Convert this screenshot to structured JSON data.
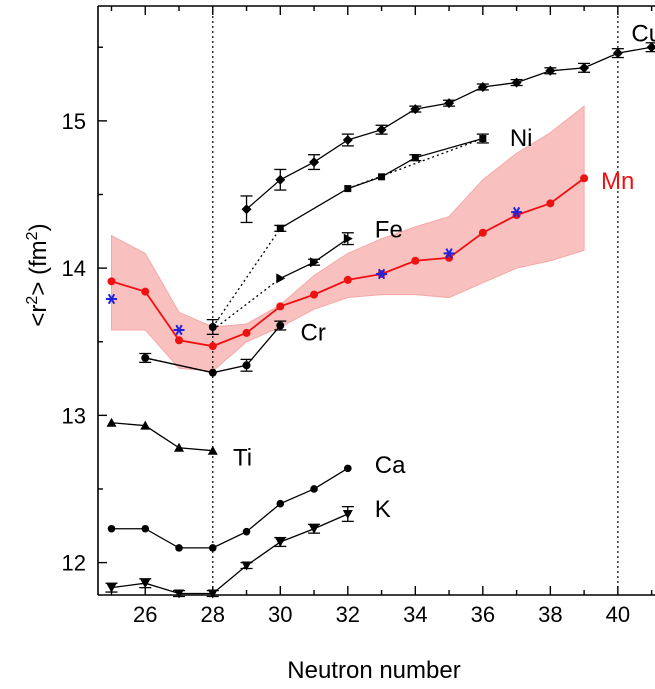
{
  "chart_data": {
    "type": "line",
    "xlabel": "Neutron number",
    "ylabel": "<r",
    "ylabel_sup": "2",
    "ylabel_tail": "> (fm",
    "ylabel_tail_sup": "2",
    "ylabel_close": ")",
    "xlim": [
      24.6,
      41.1
    ],
    "ylim": [
      11.78,
      15.78
    ],
    "xticks": [
      26,
      28,
      30,
      32,
      34,
      36,
      38,
      40
    ],
    "yticks": [
      12,
      13,
      14,
      15
    ],
    "vlines": [
      28,
      40
    ],
    "grid": false,
    "band": {
      "name": "Mn",
      "color": "#f8b6b6",
      "x": [
        25,
        26,
        27,
        28,
        29,
        30,
        31,
        32,
        33,
        34,
        35,
        36,
        37,
        38,
        39
      ],
      "upper": [
        14.22,
        14.1,
        13.7,
        13.6,
        13.62,
        13.75,
        13.95,
        14.1,
        14.2,
        14.28,
        14.35,
        14.6,
        14.78,
        14.92,
        15.1
      ],
      "lower": [
        13.58,
        13.58,
        13.32,
        13.3,
        13.5,
        13.6,
        13.72,
        13.8,
        13.82,
        13.82,
        13.8,
        13.9,
        14.0,
        14.05,
        14.12
      ]
    },
    "series": [
      {
        "name": "Cu",
        "color": "#000000",
        "marker": "diamond",
        "dashed": false,
        "x": [
          29,
          30,
          31,
          32,
          33,
          34,
          35,
          36,
          37,
          38,
          39,
          40,
          41
        ],
        "y": [
          14.4,
          14.6,
          14.72,
          14.87,
          14.94,
          15.08,
          15.12,
          15.23,
          15.26,
          15.34,
          15.36,
          15.46,
          15.5
        ],
        "err": [
          0.09,
          0.07,
          0.05,
          0.04,
          0.03,
          0.02,
          0.02,
          0.02,
          0.02,
          0.02,
          0.03,
          0.03,
          0.03
        ]
      },
      {
        "name": "Ni",
        "color": "#000000",
        "marker": "square",
        "dashed": false,
        "x": [
          30,
          32,
          33,
          34,
          36
        ],
        "y": [
          14.27,
          14.54,
          14.62,
          14.75,
          14.88
        ],
        "err": [
          0.02,
          0.0,
          0.0,
          0.02,
          0.03
        ]
      },
      {
        "name": "Fe",
        "color": "#000000",
        "marker": "triangle-right",
        "dashed": false,
        "x": [
          30,
          31,
          32
        ],
        "y": [
          13.93,
          14.04,
          14.2
        ],
        "err": [
          0.0,
          0.02,
          0.04
        ]
      },
      {
        "name": "Cr",
        "color": "#000000",
        "marker": "circle",
        "dashed": false,
        "x": [
          26,
          28,
          29,
          30
        ],
        "y": [
          13.39,
          13.29,
          13.34,
          13.61
        ],
        "err": [
          0.03,
          0.0,
          0.04,
          0.03
        ]
      },
      {
        "name": "Ti",
        "color": "#000000",
        "marker": "triangle-up",
        "dashed": false,
        "x": [
          25,
          26,
          27,
          28
        ],
        "y": [
          12.95,
          12.93,
          12.78,
          12.76
        ],
        "err": [
          0.0,
          0.0,
          0.0,
          0.0
        ]
      },
      {
        "name": "Ca",
        "color": "#000000",
        "marker": "hexagon",
        "dashed": false,
        "x": [
          25,
          26,
          27,
          28,
          29,
          30,
          31,
          32
        ],
        "y": [
          12.23,
          12.23,
          12.1,
          12.1,
          12.21,
          12.4,
          12.5,
          12.64
        ],
        "err": [
          0.0,
          0.0,
          0.0,
          0.0,
          0.0,
          0.0,
          0.0,
          0.0
        ]
      },
      {
        "name": "K",
        "color": "#000000",
        "marker": "triangle-down",
        "dashed": false,
        "x": [
          25,
          26,
          27,
          28,
          29,
          30,
          31,
          32
        ],
        "y": [
          11.83,
          11.86,
          11.79,
          11.79,
          11.98,
          12.14,
          12.23,
          12.33
        ],
        "err": [
          0.03,
          0.03,
          0.02,
          0.02,
          0.02,
          0.03,
          0.03,
          0.05
        ]
      },
      {
        "name": "Mn",
        "color": "#ee1111",
        "marker": "circle",
        "dashed": false,
        "x": [
          25,
          26,
          27,
          28,
          29,
          30,
          31,
          32,
          33,
          34,
          35,
          36,
          37,
          38,
          39
        ],
        "y": [
          13.91,
          13.84,
          13.51,
          13.47,
          13.56,
          13.74,
          13.82,
          13.92,
          13.96,
          14.05,
          14.07,
          14.24,
          14.36,
          14.44,
          14.61
        ],
        "err": [
          0,
          0,
          0,
          0,
          0,
          0,
          0,
          0,
          0,
          0,
          0,
          0,
          0,
          0,
          0
        ]
      }
    ],
    "dotted_connectors": [
      {
        "x": [
          26,
          28
        ],
        "y": [
          13.39,
          13.29
        ]
      },
      {
        "x": [
          28,
          30
        ],
        "y": [
          13.6,
          14.27
        ]
      },
      {
        "x": [
          28,
          30
        ],
        "y": [
          13.58,
          13.93
        ]
      },
      {
        "x": [
          32,
          36
        ],
        "y": [
          14.54,
          14.88
        ]
      }
    ],
    "extra_points": [
      {
        "x": 28,
        "y": 13.6,
        "err": 0.05,
        "marker": "circle"
      }
    ],
    "blue_stars": {
      "color": "#2222dd",
      "x": [
        25,
        27,
        33,
        35,
        37
      ],
      "y": [
        13.79,
        13.58,
        13.96,
        14.1,
        14.38
      ]
    },
    "labels": [
      {
        "text": "Cu",
        "x": 40.4,
        "y": 15.6,
        "color": "#000000"
      },
      {
        "text": "Ni",
        "x": 36.8,
        "y": 14.89,
        "color": "#000000"
      },
      {
        "text": "Mn",
        "x": 39.5,
        "y": 14.6,
        "color": "#ee1111"
      },
      {
        "text": "Fe",
        "x": 32.8,
        "y": 14.27,
        "color": "#000000"
      },
      {
        "text": "Cr",
        "x": 30.6,
        "y": 13.57,
        "color": "#000000"
      },
      {
        "text": "Ti",
        "x": 28.6,
        "y": 12.72,
        "color": "#000000"
      },
      {
        "text": "Ca",
        "x": 32.8,
        "y": 12.67,
        "color": "#000000"
      },
      {
        "text": "K",
        "x": 32.8,
        "y": 12.37,
        "color": "#000000"
      }
    ]
  }
}
